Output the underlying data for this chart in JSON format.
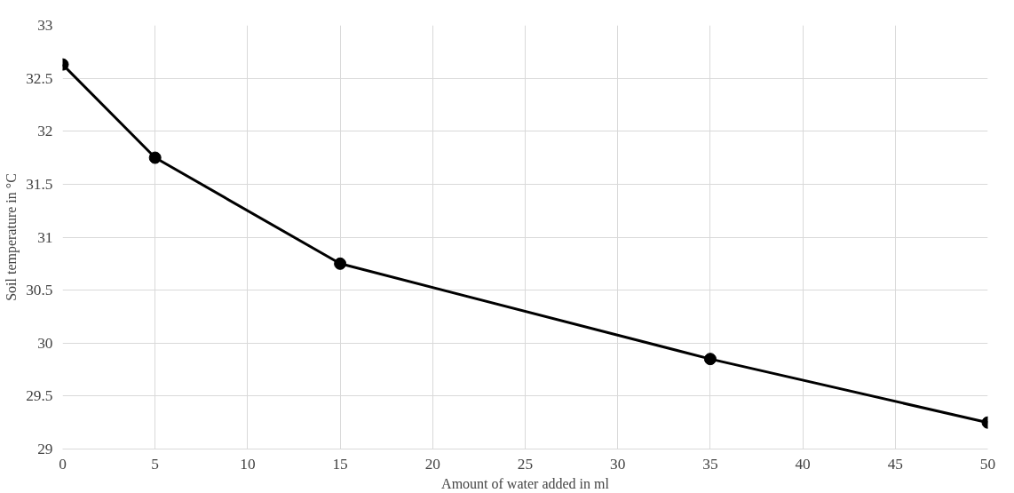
{
  "chart_data": {
    "type": "line",
    "xlabel": "Amount of water added in ml",
    "ylabel": "Soil temperature in °C",
    "x": [
      0,
      5,
      15,
      35,
      50
    ],
    "series": [
      {
        "color": "#000000",
        "values": [
          32.63,
          31.75,
          30.75,
          29.85,
          29.25
        ]
      }
    ],
    "xlim": [
      0,
      50
    ],
    "xticks": [
      0,
      5,
      10,
      15,
      20,
      25,
      30,
      35,
      40,
      45,
      50
    ],
    "ylim": [
      29,
      33
    ],
    "yticks": [
      29,
      29.5,
      30,
      30.5,
      31,
      31.5,
      32,
      32.5,
      33
    ],
    "grid": true,
    "marker": "circle",
    "line_style": "solid"
  }
}
